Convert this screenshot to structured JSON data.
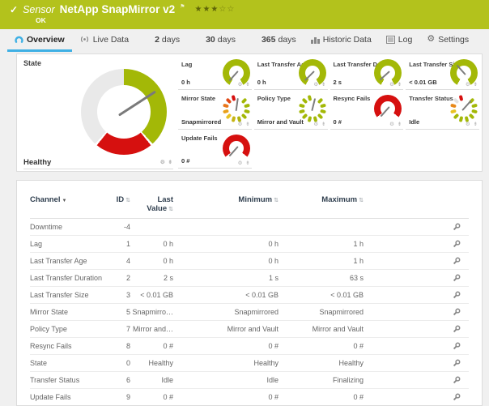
{
  "colors": {
    "header_bg": "#b3c21c",
    "accent_blue": "#3fb0e4",
    "gauge_green": "#a3b807",
    "gauge_red": "#d6100f",
    "gauge_gray": "#e9e9e9",
    "gauge_yellow": "#e8c223",
    "gauge_orange": "#e8891a"
  },
  "header": {
    "check_icon": "✓",
    "kind": "Sensor",
    "title": "NetApp SnapMirror v2",
    "flag_icon": "⚑",
    "stars_filled": "★★★",
    "stars_empty": "☆☆",
    "status": "OK"
  },
  "tabs": [
    {
      "id": "overview",
      "label": "Overview",
      "icon": "gauge-icon",
      "active": true
    },
    {
      "id": "live-data",
      "label": "Live Data",
      "icon": "antenna-icon"
    },
    {
      "id": "2-days",
      "num": "2",
      "label": "days"
    },
    {
      "id": "30-days",
      "num": "30",
      "label": "days"
    },
    {
      "id": "365-days",
      "num": "365",
      "label": "days"
    },
    {
      "id": "historic-data",
      "label": "Historic Data",
      "icon": "chart-icon"
    },
    {
      "id": "log",
      "label": "Log",
      "icon": "log-icon"
    },
    {
      "id": "settings",
      "label": "Settings",
      "icon": "gear-icon"
    }
  ],
  "gauges": {
    "main": {
      "label": "State",
      "value": "Healthy",
      "needle_deg": 57,
      "stops": [
        {
          "to": 138,
          "color": "#a3b807"
        },
        {
          "to": 141,
          "color": "#ffffff"
        },
        {
          "to": 219,
          "color": "#d6100f"
        },
        {
          "to": 222,
          "color": "#ffffff"
        },
        {
          "to": 360,
          "color": "#e9e9e9"
        }
      ]
    },
    "columns": [
      [
        {
          "label": "Lag",
          "value": "0 h",
          "gauge": {
            "kind": "arc",
            "color": "#a3b807",
            "from": 210,
            "sweep": 300,
            "needle_deg": 222
          }
        },
        {
          "label": "Mirror State",
          "value": "Snapmirrored",
          "gauge": {
            "kind": "segments",
            "needle_deg": 8,
            "segments": [
              "#ffffff",
              "#a3b807",
              "#a3b807",
              "#a3b807",
              "#a3b807",
              "#b0b40d",
              "#c6b312",
              "#e8c223",
              "#e8a01a",
              "#e8761a",
              "#e04a16",
              "#d6100f"
            ]
          }
        },
        {
          "label": "Update Fails",
          "value": "0 #",
          "gauge": {
            "kind": "arc",
            "color": "#d6100f",
            "from": 232,
            "sweep": 256,
            "needle_deg": 222
          }
        }
      ],
      [
        {
          "label": "Last Transfer Age",
          "value": "0 h",
          "gauge": {
            "kind": "arc",
            "color": "#a3b807",
            "from": 210,
            "sweep": 300,
            "needle_deg": 225
          }
        },
        {
          "label": "Policy Type",
          "value": "Mirror and Vault",
          "gauge": {
            "kind": "segments",
            "needle_deg": 14,
            "segments": [
              "#ffffff",
              "#a3b807",
              "#a3b807",
              "#a3b807",
              "#a3b807",
              "#a3b807",
              "#a3b807",
              "#a3b807",
              "#a3b807",
              "#a3b807",
              "#a3b807",
              "#a3b807"
            ]
          }
        }
      ],
      [
        {
          "label": "Last Transfer Duration",
          "value": "2 s",
          "gauge": {
            "kind": "arc",
            "color": "#a3b807",
            "from": 210,
            "sweep": 300,
            "needle_deg": 228
          }
        },
        {
          "label": "Resync Fails",
          "value": "0 #",
          "gauge": {
            "kind": "arc",
            "color": "#d6100f",
            "from": 232,
            "sweep": 256,
            "needle_deg": 222
          }
        }
      ],
      [
        {
          "label": "Last Transfer Size",
          "value": "< 0.01 GB",
          "gauge": {
            "kind": "arc",
            "color": "#a3b807",
            "from": 210,
            "sweep": 300,
            "needle_deg": 318
          }
        },
        {
          "label": "Transfer Status",
          "value": "Idle",
          "gauge": {
            "kind": "segments",
            "needle_deg": 42,
            "segments": [
              "#ffffff",
              "#a3b807",
              "#a3b807",
              "#a3b807",
              "#a3b807",
              "#a3b807",
              "#a3b807",
              "#a3b807",
              "#e8c223",
              "#e8891a",
              "#e3e3e3",
              "#d6100f"
            ]
          }
        }
      ]
    ]
  },
  "table": {
    "columns": [
      {
        "label": "Channel",
        "sort": "▼",
        "align": "left"
      },
      {
        "label": "ID",
        "sort": "⇅",
        "align": "right"
      },
      {
        "label": "Last Value",
        "sort": "⇅",
        "align": "right",
        "two_line": true
      },
      {
        "label": "Minimum",
        "sort": "⇅",
        "align": "right"
      },
      {
        "label": "Maximum",
        "sort": "⇅",
        "align": "right"
      }
    ],
    "rows": [
      {
        "channel": "Downtime",
        "id": "-4",
        "last": "",
        "min": "",
        "max": ""
      },
      {
        "channel": "Lag",
        "id": "1",
        "last": "0 h",
        "min": "0 h",
        "max": "1 h"
      },
      {
        "channel": "Last Transfer Age",
        "id": "4",
        "last": "0 h",
        "min": "0 h",
        "max": "1 h"
      },
      {
        "channel": "Last Transfer Duration",
        "id": "2",
        "last": "2 s",
        "min": "1 s",
        "max": "63 s"
      },
      {
        "channel": "Last Transfer Size",
        "id": "3",
        "last": "< 0.01 GB",
        "min": "< 0.01 GB",
        "max": "< 0.01 GB"
      },
      {
        "channel": "Mirror State",
        "id": "5",
        "last": "Snapmirro…",
        "min": "Snapmirrored",
        "max": "Snapmirrored"
      },
      {
        "channel": "Policy Type",
        "id": "7",
        "last": "Mirror and…",
        "min": "Mirror and Vault",
        "max": "Mirror and Vault"
      },
      {
        "channel": "Resync Fails",
        "id": "8",
        "last": "0 #",
        "min": "0 #",
        "max": "0 #"
      },
      {
        "channel": "State",
        "id": "0",
        "last": "Healthy",
        "min": "Healthy",
        "max": "Healthy"
      },
      {
        "channel": "Transfer Status",
        "id": "6",
        "last": "Idle",
        "min": "Idle",
        "max": "Finalizing"
      },
      {
        "channel": "Update Fails",
        "id": "9",
        "last": "0 #",
        "min": "0 #",
        "max": "0 #"
      }
    ]
  }
}
